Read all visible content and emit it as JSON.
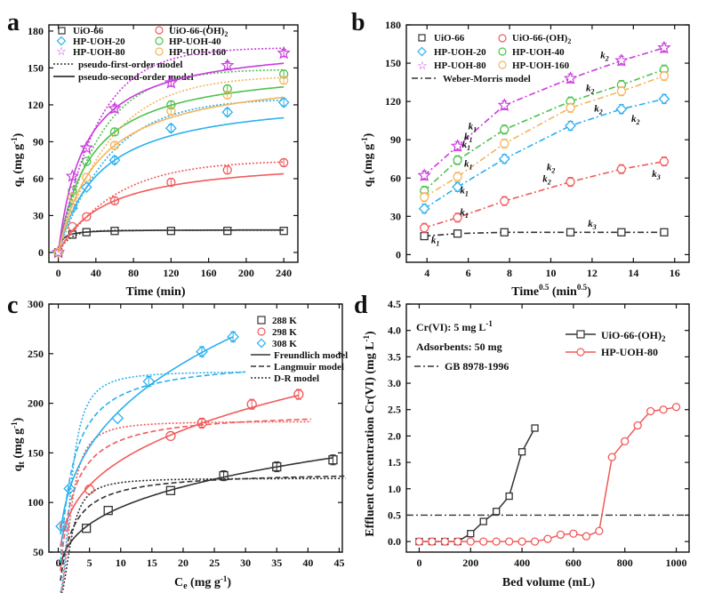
{
  "colors": {
    "black": "#333333",
    "red": "#f25a5a",
    "blue": "#2bb0ee",
    "purple": "#c93bdc",
    "green": "#4cc24c",
    "orange": "#f4b55e"
  },
  "chart_data": [
    {
      "id": "a",
      "type": "scatter",
      "panel_label": "a",
      "xlabel": "Time (min)",
      "ylabel": "q_t (mg g^-1)",
      "xlim": [
        -10,
        255
      ],
      "ylim": [
        -8,
        185
      ],
      "xticks": [
        0,
        40,
        80,
        120,
        160,
        200,
        240
      ],
      "yticks": [
        0,
        30,
        60,
        90,
        120,
        150,
        180
      ],
      "legend": [
        "UiO-66",
        "UiO-66-(OH)2",
        "HP-UOH-20",
        "HP-UOH-40",
        "HP-UOH-80",
        "HP-UOH-160",
        "pseudo-first-order model",
        "pseudo-second-order model"
      ],
      "x": [
        0,
        15,
        30,
        60,
        120,
        180,
        240
      ],
      "series": [
        {
          "name": "UiO-66",
          "color": "black",
          "marker": "square",
          "values": [
            0,
            14.5,
            16.5,
            17.5,
            17.5,
            17.5,
            17.5
          ]
        },
        {
          "name": "UiO-66-(OH)2",
          "color": "red",
          "marker": "circle",
          "values": [
            0,
            21,
            29,
            42,
            57,
            67,
            73
          ]
        },
        {
          "name": "HP-UOH-20",
          "color": "blue",
          "marker": "diamond",
          "values": [
            0,
            36,
            53,
            75,
            101,
            114,
            122
          ]
        },
        {
          "name": "HP-UOH-40",
          "color": "green",
          "marker": "circle",
          "values": [
            0,
            50,
            74,
            98,
            120,
            133,
            145
          ]
        },
        {
          "name": "HP-UOH-80",
          "color": "purple",
          "marker": "star",
          "values": [
            0,
            62,
            85,
            117,
            138,
            152,
            162
          ]
        },
        {
          "name": "HP-UOH-160",
          "color": "orange",
          "marker": "circle",
          "values": [
            0,
            45,
            61,
            87,
            115,
            128,
            140
          ]
        }
      ]
    },
    {
      "id": "b",
      "type": "line",
      "panel_label": "b",
      "xlabel": "Time^0.5 (min^0.5)",
      "ylabel": "q_t (mg g^-1)",
      "xlim": [
        3,
        16.7
      ],
      "ylim": [
        -6,
        180
      ],
      "xticks": [
        4,
        6,
        8,
        10,
        12,
        14,
        16
      ],
      "yticks": [
        0,
        30,
        60,
        90,
        120,
        150,
        180
      ],
      "legend": [
        "UiO-66",
        "UiO-66-(OH)2",
        "HP-UOH-20",
        "HP-UOH-40",
        "HP-UOH-80",
        "HP-UOH-160",
        "Weber-Morris model"
      ],
      "x": [
        3.87,
        5.48,
        7.75,
        10.95,
        13.42,
        15.49
      ],
      "series": [
        {
          "name": "UiO-66",
          "color": "black",
          "marker": "square",
          "values": [
            14.5,
            16.5,
            17.5,
            17.5,
            17.5,
            17.5
          ]
        },
        {
          "name": "UiO-66-(OH)2",
          "color": "red",
          "marker": "circle",
          "values": [
            21,
            29,
            42,
            57,
            67,
            73
          ]
        },
        {
          "name": "HP-UOH-20",
          "color": "blue",
          "marker": "diamond",
          "values": [
            36,
            53,
            75,
            101,
            114,
            122
          ]
        },
        {
          "name": "HP-UOH-40",
          "color": "green",
          "marker": "circle",
          "values": [
            50,
            74,
            98,
            120,
            133,
            145
          ]
        },
        {
          "name": "HP-UOH-80",
          "color": "purple",
          "marker": "star",
          "values": [
            62,
            85,
            117,
            138,
            152,
            162
          ]
        },
        {
          "name": "HP-UOH-160",
          "color": "orange",
          "marker": "circle",
          "values": [
            45,
            61,
            87,
            115,
            128,
            140
          ]
        }
      ],
      "annotations": [
        {
          "text": "k1",
          "x": 6.0,
          "y": 98
        },
        {
          "text": "k1",
          "x": 5.8,
          "y": 90
        },
        {
          "text": "k1",
          "x": 5.7,
          "y": 84
        },
        {
          "text": "k1",
          "x": 5.8,
          "y": 69
        },
        {
          "text": "k1",
          "x": 5.6,
          "y": 48
        },
        {
          "text": "k1",
          "x": 5.6,
          "y": 31
        },
        {
          "text": "k1",
          "x": 4.2,
          "y": 9
        },
        {
          "text": "k2",
          "x": 12.4,
          "y": 154
        },
        {
          "text": "k2",
          "x": 11.7,
          "y": 128
        },
        {
          "text": "k2",
          "x": 12.1,
          "y": 112
        },
        {
          "text": "k2",
          "x": 13.9,
          "y": 104
        },
        {
          "text": "k2",
          "x": 9.8,
          "y": 66
        },
        {
          "text": "k2",
          "x": 9.6,
          "y": 57
        },
        {
          "text": "k3",
          "x": 14.9,
          "y": 61
        },
        {
          "text": "k3",
          "x": 11.8,
          "y": 22
        }
      ]
    },
    {
      "id": "c",
      "type": "scatter",
      "panel_label": "c",
      "xlabel": "C_e (mg g^-1)",
      "ylabel": "q_t (mg g^-1)",
      "xlim": [
        -1.5,
        45.5
      ],
      "ylim": [
        50,
        300
      ],
      "xticks": [
        0,
        5,
        10,
        15,
        20,
        25,
        30,
        35,
        40,
        45
      ],
      "yticks": [
        50,
        100,
        150,
        200,
        250,
        300
      ],
      "legend": [
        "288 K",
        "298 K",
        "308 K",
        "Freundlich model",
        "Langmuir model",
        "D-R model"
      ],
      "series": [
        {
          "name": "288 K",
          "color": "black",
          "marker": "square",
          "x": [
            4.5,
            8,
            18,
            26.5,
            35,
            44
          ],
          "values": [
            74,
            92,
            112,
            127,
            136,
            143
          ]
        },
        {
          "name": "298 K",
          "color": "red",
          "marker": "circle",
          "x": [
            1,
            5,
            18,
            23,
            31,
            38.5
          ],
          "values": [
            76,
            113,
            167,
            180,
            199,
            209
          ]
        },
        {
          "name": "308 K",
          "color": "blue",
          "marker": "diamond",
          "x": [
            0.5,
            1.8,
            9.5,
            14.5,
            23,
            28
          ],
          "values": [
            76,
            114,
            185,
            222,
            252,
            267
          ]
        }
      ]
    },
    {
      "id": "d",
      "type": "line",
      "panel_label": "d",
      "xlabel": "Bed volume (mL)",
      "ylabel": "Effluent concentration Cr(VI) (mg L^-1)",
      "xlim": [
        -50,
        1050
      ],
      "ylim": [
        -0.2,
        4.5
      ],
      "xticks": [
        0,
        200,
        400,
        600,
        800,
        1000
      ],
      "yticks": [
        0.0,
        0.5,
        1.0,
        1.5,
        2.0,
        2.5,
        3.0,
        3.5,
        4.0,
        4.5
      ],
      "conditions": [
        "Cr(VI): 5 mg L^-1",
        "Adsorbents: 50 mg",
        "GB 8978-1996"
      ],
      "reference_line": {
        "name": "GB 8978-1996",
        "y": 0.5
      },
      "series": [
        {
          "name": "UiO-66-(OH)2",
          "color": "black",
          "marker": "square",
          "x": [
            0,
            50,
            100,
            150,
            200,
            250,
            300,
            350,
            400,
            450
          ],
          "values": [
            0,
            0,
            0,
            0,
            0.15,
            0.38,
            0.57,
            0.86,
            1.7,
            2.15
          ]
        },
        {
          "name": "HP-UOH-80",
          "color": "red",
          "marker": "circle",
          "x": [
            0,
            50,
            100,
            150,
            200,
            250,
            300,
            350,
            400,
            450,
            500,
            550,
            600,
            650,
            700,
            750,
            800,
            850,
            900,
            950,
            1000
          ],
          "values": [
            0,
            0,
            0,
            0,
            0,
            0,
            0,
            0,
            0,
            0,
            0.05,
            0.13,
            0.15,
            0.1,
            0.2,
            1.6,
            1.9,
            2.2,
            2.47,
            2.5,
            2.55
          ]
        }
      ]
    }
  ]
}
